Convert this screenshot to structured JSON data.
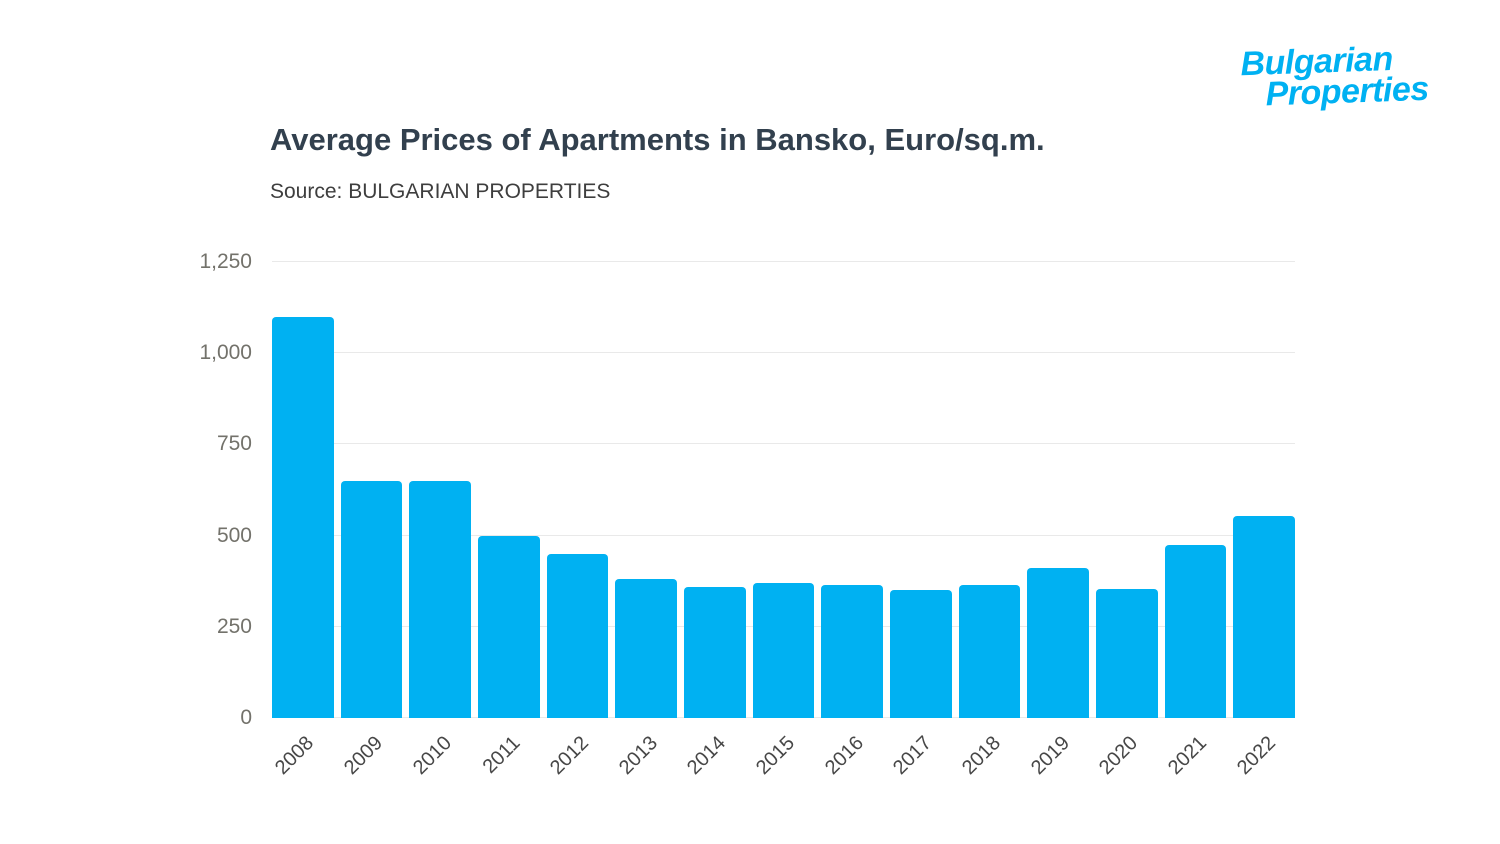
{
  "logo": {
    "line1": "Bulgarian",
    "line2": "Properties"
  },
  "theme": {
    "accent": "#00b1f2",
    "bar_color": "#00b1f2",
    "title_color": "#32404e",
    "text_color": "#3e3e3e",
    "tick_color": "#73726b",
    "xtick_color": "#474747",
    "grid_color": "#e9e9e9"
  },
  "chart_data": {
    "type": "bar",
    "title": "Average Prices of Apartments in Bansko, Euro/sq.m.",
    "subtitle": "Source: BULGARIAN PROPERTIES",
    "categories": [
      "2008",
      "2009",
      "2010",
      "2011",
      "2012",
      "2013",
      "2014",
      "2015",
      "2016",
      "2017",
      "2018",
      "2019",
      "2020",
      "2021",
      "2022"
    ],
    "values": [
      1100,
      650,
      650,
      500,
      450,
      380,
      360,
      370,
      365,
      350,
      365,
      410,
      355,
      475,
      555
    ],
    "xlabel": "",
    "ylabel": "Euro/sq.m.",
    "ylim": [
      0,
      1250
    ],
    "yticks": [
      0,
      250,
      500,
      750,
      1000,
      1250
    ],
    "ytick_labels": [
      "0",
      "250",
      "500",
      "750",
      "1,000",
      "1,250"
    ],
    "grid": true,
    "legend": "none",
    "bar_color": "#00b1f2"
  }
}
